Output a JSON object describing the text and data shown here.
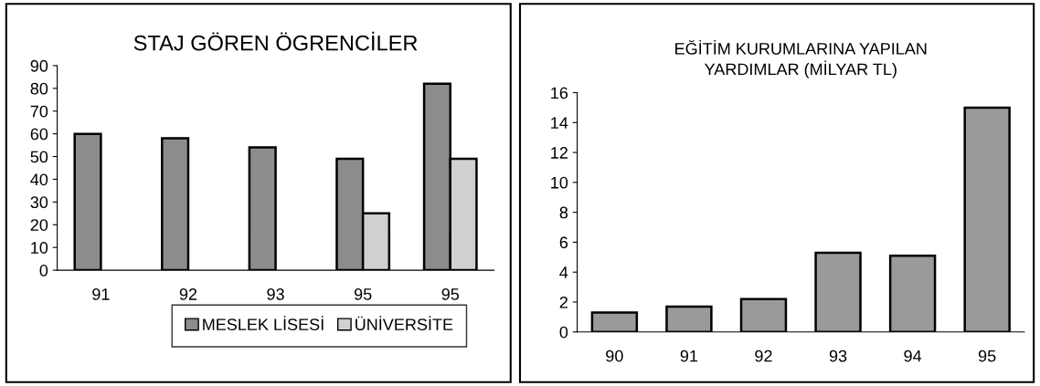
{
  "chart_data": [
    {
      "type": "bar",
      "title": "STAJ GÖREN ÖGRENCİLER",
      "categories": [
        "91",
        "92",
        "93",
        "95",
        "95"
      ],
      "series": [
        {
          "name": "MESLEK LİSESİ",
          "color": "#8c8c8c",
          "values": [
            60,
            58,
            54,
            49,
            82
          ]
        },
        {
          "name": "ÜNİVERSİTE",
          "color": "#d0d0d0",
          "values": [
            null,
            null,
            null,
            25,
            49
          ]
        }
      ],
      "ylim": [
        0,
        90
      ],
      "yticks": [
        0,
        10,
        20,
        30,
        40,
        50,
        60,
        70,
        80,
        90
      ],
      "grid": false,
      "legend": "bottom"
    },
    {
      "type": "bar",
      "title": "EĞİTİM KURUMLARINA YAPILAN\nYARDIMLAR (MİLYAR TL)",
      "categories": [
        "90",
        "91",
        "92",
        "93",
        "94",
        "95"
      ],
      "series": [
        {
          "color": "#9a9a9a",
          "values": [
            1.3,
            1.7,
            2.2,
            5.3,
            5.1,
            15
          ]
        }
      ],
      "ylim": [
        0,
        16
      ],
      "yticks": [
        0,
        2,
        4,
        6,
        8,
        10,
        12,
        14,
        16
      ],
      "grid": false,
      "legend": false
    }
  ]
}
